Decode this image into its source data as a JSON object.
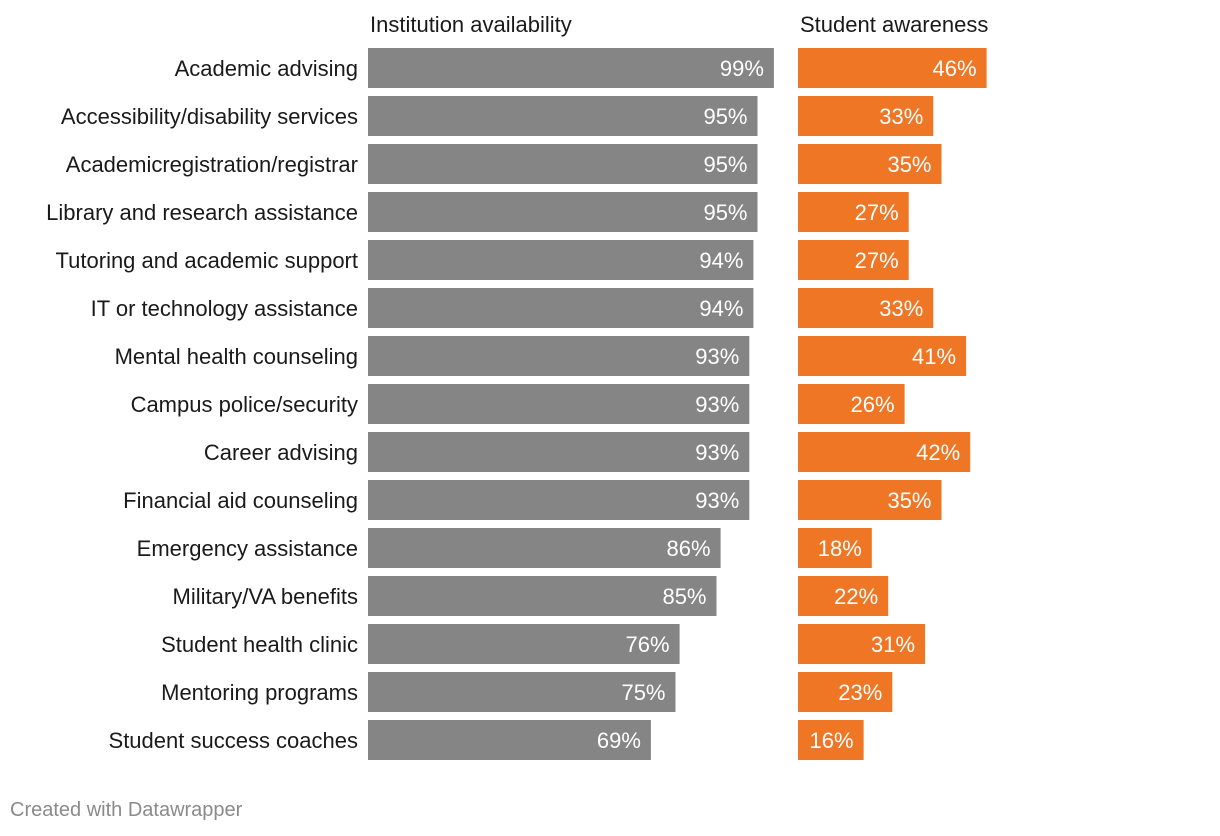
{
  "chart_data": {
    "type": "bar",
    "categories": [
      "Academic advising",
      "Accessibility/disability services",
      "Academicregistration/registrar",
      "Library and research assistance",
      "Tutoring and academic support",
      "IT or technology assistance",
      "Mental health counseling",
      "Campus police/security",
      "Career advising",
      "Financial aid counseling",
      "Emergency assistance",
      "Military/VA benefits",
      "Student health clinic",
      "Mentoring programs",
      "Student success coaches"
    ],
    "series": [
      {
        "name": "Institution availability",
        "color": "#858585",
        "values": [
          99,
          95,
          95,
          95,
          94,
          94,
          93,
          93,
          93,
          93,
          86,
          85,
          76,
          75,
          69
        ]
      },
      {
        "name": "Student awareness",
        "color": "#ee7624",
        "values": [
          46,
          33,
          35,
          27,
          27,
          33,
          41,
          26,
          42,
          35,
          18,
          22,
          31,
          23,
          16
        ]
      }
    ],
    "value_suffix": "%",
    "xlim": [
      0,
      100
    ],
    "grid": false,
    "legend": "none"
  },
  "footer": {
    "credit": "Created with Datawrapper"
  }
}
